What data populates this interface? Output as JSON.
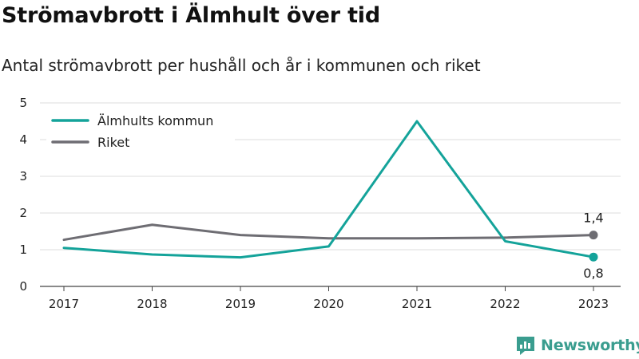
{
  "title": "Strömavbrott i Älmhult över tid",
  "subtitle": "Antal strömavbrott per hushåll och år i kommunen och riket",
  "brand": "Newsworthy",
  "chart_data": {
    "type": "line",
    "x": [
      "2017",
      "2018",
      "2019",
      "2020",
      "2021",
      "2022",
      "2023"
    ],
    "ylim": [
      0,
      5
    ],
    "yticks": [
      0,
      1,
      2,
      3,
      4,
      5
    ],
    "grid": true,
    "legend_position": "top-left",
    "series": [
      {
        "name": "Älmhults kommun",
        "color": "#14a39a",
        "values": [
          1.05,
          0.87,
          0.79,
          1.09,
          4.5,
          1.23,
          0.8
        ],
        "end_label": "0,8"
      },
      {
        "name": "Riket",
        "color": "#6e6d73",
        "values": [
          1.27,
          1.68,
          1.4,
          1.31,
          1.31,
          1.33,
          1.4
        ],
        "end_label": "1,4"
      }
    ]
  }
}
